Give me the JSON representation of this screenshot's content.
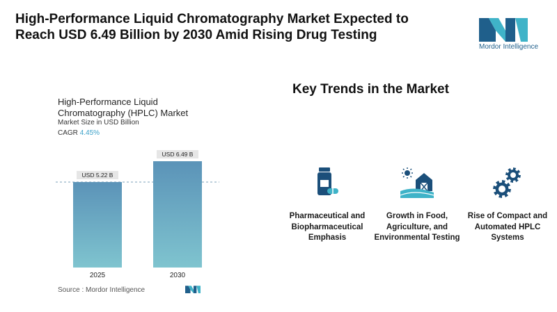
{
  "headline": "High-Performance Liquid Chromatography Market Expected to Reach USD 6.49 Billion by 2030 Amid Rising Drug Testing",
  "logo": {
    "text": "Mordor Intelligence",
    "icon": "mordor-logo-icon"
  },
  "chart_data": {
    "type": "bar",
    "title": "High-Performance Liquid Chromatography (HPLC) Market",
    "subtitle": "Market Size in USD Billion",
    "cagr_label": "CAGR",
    "cagr_value": "4.45%",
    "categories": [
      "2025",
      "2030"
    ],
    "values": [
      5.22,
      6.49
    ],
    "data_labels": [
      "USD 5.22 B",
      "USD 6.49 B"
    ],
    "ylim": [
      0,
      7
    ],
    "grid": false,
    "reference_line": "dashed line at 2025 value",
    "colors": {
      "bar_top": "#5b93b8",
      "bar_bottom": "#7fc4cf",
      "label_bg": "#e6e6e6"
    }
  },
  "source": "Source :  Mordor Intelligence",
  "trends": {
    "heading": "Key Trends in the Market",
    "items": [
      {
        "label": "Pharmaceutical and Biopharmaceutical Emphasis",
        "icon": "medicine-bottle-icon"
      },
      {
        "label": "Growth in Food, Agriculture, and Environmental Testing",
        "icon": "farm-barn-icon"
      },
      {
        "label": "Rise of Compact and Automated HPLC Systems",
        "icon": "gears-icon"
      }
    ]
  },
  "colors": {
    "icon_dark": "#1b4f7a",
    "icon_teal": "#3fb3c8",
    "accent": "#3aa0c8"
  }
}
